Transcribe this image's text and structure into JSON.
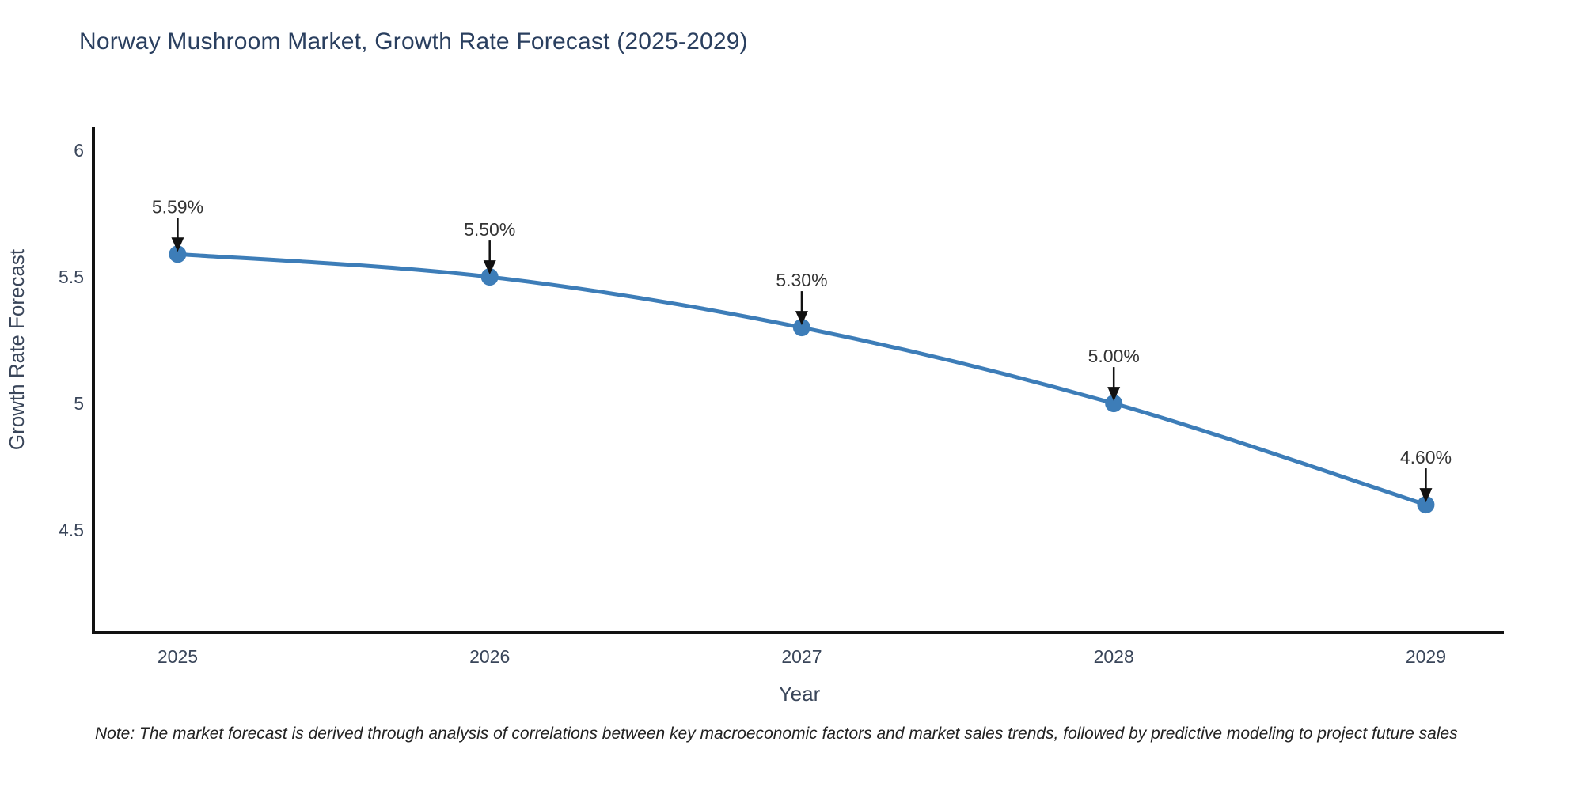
{
  "title": "Norway Mushroom Market, Growth Rate Forecast (2025-2029)",
  "note": "Note: The market forecast is derived through analysis of correlations between key macroeconomic factors and market sales trends, followed by predictive modeling to project future sales",
  "chart_data": {
    "type": "line",
    "title": "Norway Mushroom Market, Growth Rate Forecast (2025-2029)",
    "xlabel": "Year",
    "ylabel": "Growth Rate Forecast",
    "x": [
      2025,
      2026,
      2027,
      2028,
      2029
    ],
    "values": [
      5.59,
      5.5,
      5.3,
      5.0,
      4.6
    ],
    "point_labels": [
      "5.59%",
      "5.50%",
      "5.30%",
      "5.00%",
      "4.60%"
    ],
    "xticks": [
      "2025",
      "2026",
      "2027",
      "2028",
      "2029"
    ],
    "yticks": [
      6,
      5.5,
      5,
      4.5
    ],
    "ytick_labels": [
      "6",
      "5.5",
      "5",
      "4.5"
    ],
    "xlim": [
      2024.73,
      2029.25
    ],
    "ylim": [
      4.094,
      6.094
    ],
    "grid": false,
    "legend_position": "none",
    "line_color": "#3d7db8",
    "marker_color": "#3d7db8",
    "axis_color": "#111111",
    "tick_color": "#3a465a",
    "annotation_color": "#333333",
    "arrow_color": "#111111"
  }
}
